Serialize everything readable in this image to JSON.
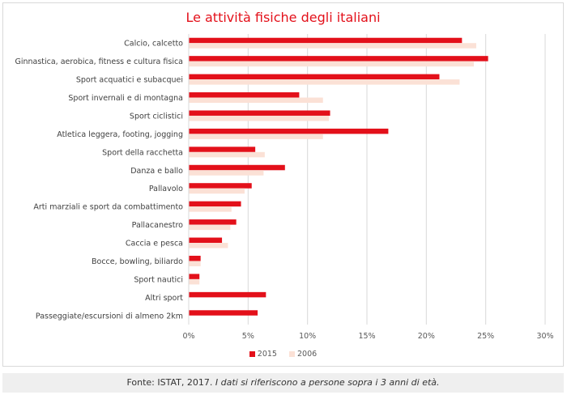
{
  "chart_data": {
    "type": "bar",
    "orientation": "horizontal",
    "title": "Le attività fisiche degli italiani",
    "categories": [
      "Calcio, calcetto",
      "Ginnastica, aerobica, fitness e cultura fisica",
      "Sport acquatici e subacquei",
      "Sport invernali e di montagna",
      "Sport ciclistici",
      "Atletica leggera, footing, jogging",
      "Sport della racchetta",
      "Danza e ballo",
      "Pallavolo",
      "Arti marziali e sport da combattimento",
      "Pallacanestro",
      "Caccia e pesca",
      "Bocce, bowling, biliardo",
      "Sport nautici",
      "Altri sport",
      "Passeggiate/escursioni di almeno 2km"
    ],
    "series": [
      {
        "name": "2015",
        "color": "#e3101a",
        "values": [
          23.0,
          25.2,
          21.1,
          9.3,
          11.9,
          16.8,
          5.6,
          8.1,
          5.3,
          4.4,
          4.0,
          2.8,
          1.0,
          0.9,
          6.5,
          5.8
        ]
      },
      {
        "name": "2006",
        "color": "#fbe1d6",
        "values": [
          24.2,
          24.0,
          22.8,
          11.3,
          11.8,
          11.3,
          6.4,
          6.3,
          4.7,
          3.6,
          3.5,
          3.3,
          1.0,
          0.9,
          0.0,
          0.0
        ]
      }
    ],
    "xlim": [
      0,
      30
    ],
    "xticks": [
      "0%",
      "5%",
      "10%",
      "15%",
      "20%",
      "25%",
      "30%"
    ],
    "grid": true,
    "legend": "bottom"
  },
  "footer": {
    "source": "Fonte: ISTAT, 2017. ",
    "note": "I dati si riferiscono a persone sopra i 3 anni di età."
  }
}
